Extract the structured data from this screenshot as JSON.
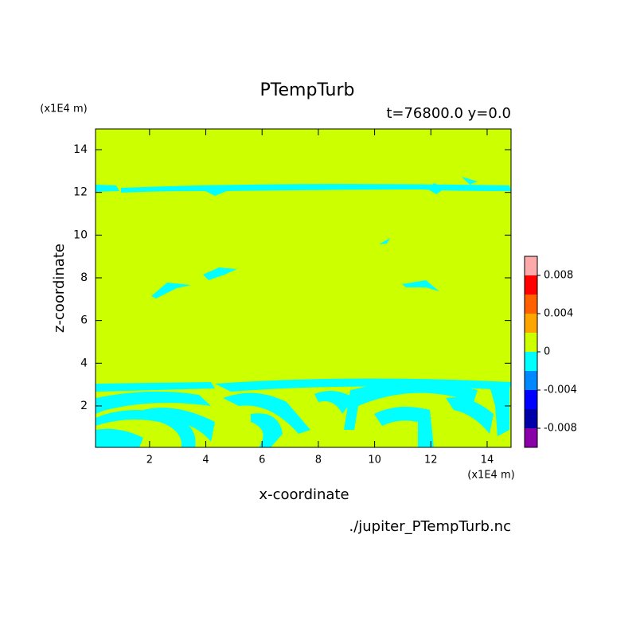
{
  "chart_data": {
    "type": "contour",
    "title": "PTempTurb",
    "subtitle": "t=76800.0  y=0.0",
    "x_label": "x-coordinate",
    "y_label": "z-coordinate",
    "x_unit": "(x1E4 m)",
    "y_unit": "(x1E4 m)",
    "source": "./jupiter_PTempTurb.nc",
    "xlim": [
      0.08,
      14.85
    ],
    "ylim": [
      0.06,
      14.97
    ],
    "xticks": [
      2,
      4,
      6,
      8,
      10,
      12,
      14
    ],
    "yticks": [
      2,
      4,
      6,
      8,
      10,
      12,
      14
    ],
    "colorbar": {
      "levels": [
        -0.01,
        -0.008,
        -0.006,
        -0.004,
        -0.002,
        0,
        0.002,
        0.004,
        0.006,
        0.008,
        0.01
      ],
      "colors": [
        "#8a00a8",
        "#0000a8",
        "#0000ff",
        "#0088ff",
        "#00ffff",
        "#ccff00",
        "#ffa500",
        "#ff6000",
        "#ff0000",
        "#ffaaaa"
      ],
      "ticks": [
        -0.008,
        -0.004,
        0,
        0.004,
        0.008
      ]
    }
  }
}
